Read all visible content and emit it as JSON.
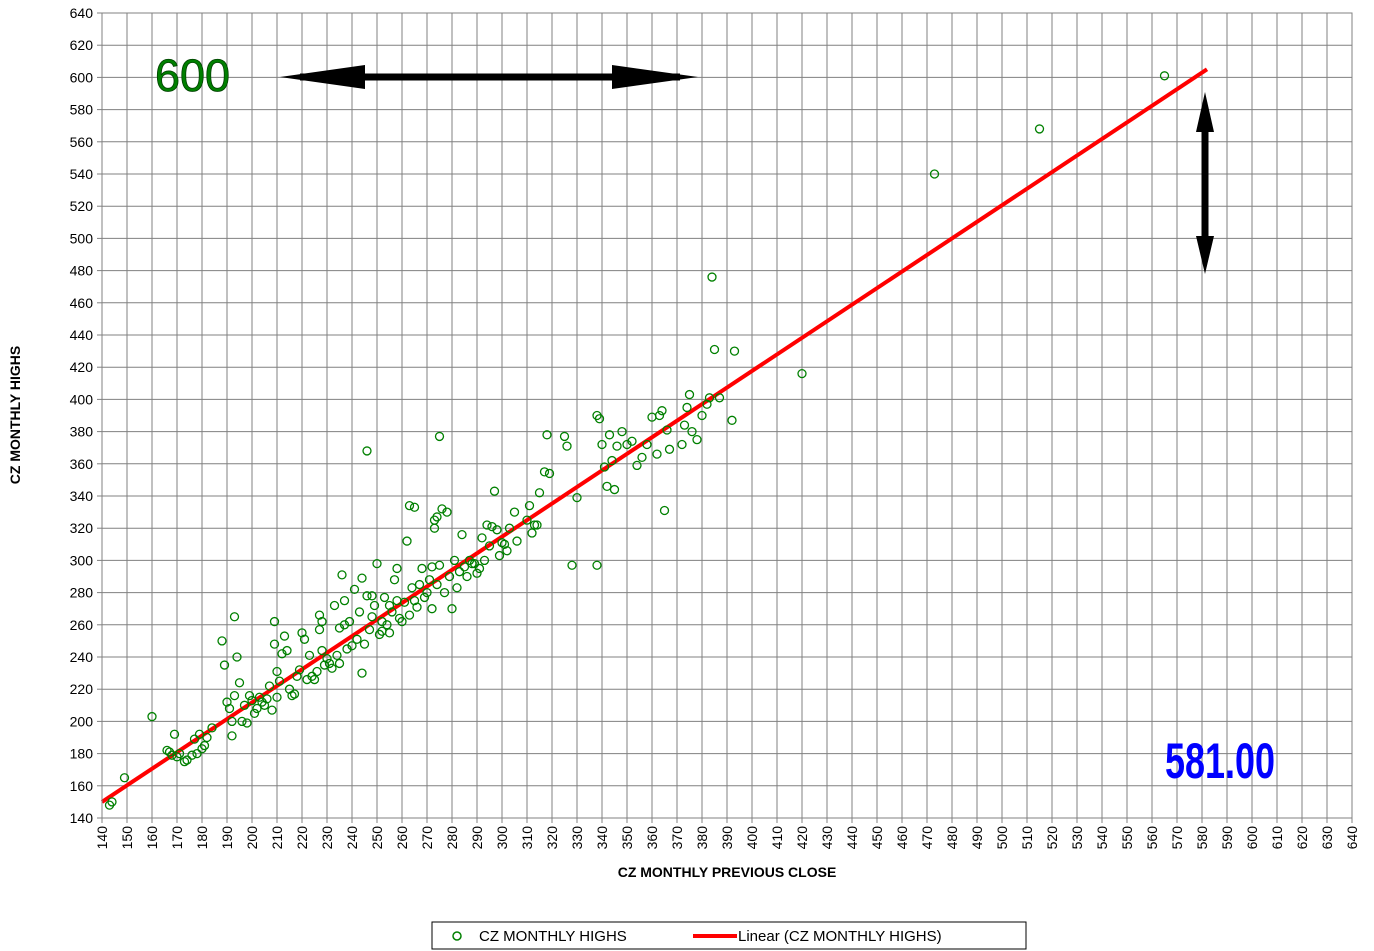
{
  "chart_data": {
    "type": "scatter",
    "xlabel": "CZ MONTHLY PREVIOUS CLOSE",
    "ylabel": "CZ MONTHLY HIGHS",
    "xlim": [
      140,
      640
    ],
    "ylim": [
      140,
      640
    ],
    "xtick_step": 10,
    "ytick_step": 20,
    "grid": true,
    "legend_position": "bottom-center",
    "colors": {
      "points": "#008000",
      "trend": "#ff0000",
      "arrows": "#000000",
      "label_600": "#008000",
      "label_581": "#0000ff"
    },
    "series": [
      {
        "name": "CZ MONTHLY HIGHS",
        "marker": "open-circle",
        "points": [
          [
            143,
            148
          ],
          [
            144,
            150
          ],
          [
            149,
            165
          ],
          [
            160,
            203
          ],
          [
            166,
            182
          ],
          [
            167,
            181
          ],
          [
            168,
            179
          ],
          [
            169,
            192
          ],
          [
            170,
            178
          ],
          [
            171,
            180
          ],
          [
            173,
            175
          ],
          [
            174,
            176
          ],
          [
            176,
            179
          ],
          [
            177,
            189
          ],
          [
            178,
            180
          ],
          [
            179,
            192
          ],
          [
            180,
            183
          ],
          [
            181,
            185
          ],
          [
            182,
            190
          ],
          [
            184,
            196
          ],
          [
            188,
            250
          ],
          [
            189,
            235
          ],
          [
            190,
            212
          ],
          [
            191,
            208
          ],
          [
            192,
            191
          ],
          [
            192,
            200
          ],
          [
            193,
            216
          ],
          [
            193,
            265
          ],
          [
            194,
            240
          ],
          [
            195,
            224
          ],
          [
            196,
            200
          ],
          [
            197,
            210
          ],
          [
            198,
            199
          ],
          [
            199,
            216
          ],
          [
            200,
            213
          ],
          [
            201,
            205
          ],
          [
            202,
            208
          ],
          [
            203,
            215
          ],
          [
            204,
            212
          ],
          [
            205,
            210
          ],
          [
            206,
            214
          ],
          [
            207,
            222
          ],
          [
            208,
            207
          ],
          [
            209,
            248
          ],
          [
            209,
            262
          ],
          [
            210,
            231
          ],
          [
            210,
            215
          ],
          [
            211,
            225
          ],
          [
            212,
            242
          ],
          [
            213,
            253
          ],
          [
            214,
            244
          ],
          [
            215,
            220
          ],
          [
            216,
            216
          ],
          [
            217,
            217
          ],
          [
            218,
            228
          ],
          [
            219,
            232
          ],
          [
            220,
            255
          ],
          [
            221,
            251
          ],
          [
            222,
            226
          ],
          [
            223,
            241
          ],
          [
            224,
            228
          ],
          [
            225,
            226
          ],
          [
            226,
            231
          ],
          [
            227,
            266
          ],
          [
            227,
            257
          ],
          [
            228,
            262
          ],
          [
            228,
            244
          ],
          [
            229,
            235
          ],
          [
            230,
            239
          ],
          [
            231,
            236
          ],
          [
            232,
            233
          ],
          [
            233,
            272
          ],
          [
            234,
            241
          ],
          [
            235,
            236
          ],
          [
            235,
            258
          ],
          [
            236,
            291
          ],
          [
            237,
            260
          ],
          [
            237,
            275
          ],
          [
            238,
            245
          ],
          [
            239,
            262
          ],
          [
            240,
            247
          ],
          [
            241,
            282
          ],
          [
            242,
            251
          ],
          [
            243,
            268
          ],
          [
            244,
            289
          ],
          [
            244,
            230
          ],
          [
            245,
            248
          ],
          [
            246,
            278
          ],
          [
            246,
            368
          ],
          [
            247,
            257
          ],
          [
            248,
            265
          ],
          [
            248,
            278
          ],
          [
            249,
            272
          ],
          [
            250,
            298
          ],
          [
            251,
            254
          ],
          [
            252,
            256
          ],
          [
            252,
            262
          ],
          [
            253,
            277
          ],
          [
            254,
            260
          ],
          [
            255,
            255
          ],
          [
            255,
            272
          ],
          [
            256,
            268
          ],
          [
            257,
            288
          ],
          [
            258,
            295
          ],
          [
            258,
            275
          ],
          [
            259,
            264
          ],
          [
            260,
            262
          ],
          [
            261,
            274
          ],
          [
            262,
            312
          ],
          [
            263,
            334
          ],
          [
            263,
            266
          ],
          [
            264,
            283
          ],
          [
            265,
            333
          ],
          [
            265,
            275
          ],
          [
            266,
            271
          ],
          [
            267,
            285
          ],
          [
            268,
            295
          ],
          [
            269,
            277
          ],
          [
            270,
            280
          ],
          [
            271,
            288
          ],
          [
            272,
            296
          ],
          [
            272,
            270
          ],
          [
            273,
            325
          ],
          [
            273,
            320
          ],
          [
            274,
            285
          ],
          [
            274,
            327
          ],
          [
            275,
            377
          ],
          [
            275,
            297
          ],
          [
            276,
            332
          ],
          [
            277,
            280
          ],
          [
            278,
            330
          ],
          [
            279,
            290
          ],
          [
            280,
            270
          ],
          [
            281,
            300
          ],
          [
            282,
            283
          ],
          [
            283,
            293
          ],
          [
            284,
            316
          ],
          [
            285,
            296
          ],
          [
            286,
            290
          ],
          [
            287,
            300
          ],
          [
            288,
            298
          ],
          [
            289,
            298
          ],
          [
            290,
            292
          ],
          [
            291,
            295
          ],
          [
            292,
            314
          ],
          [
            293,
            300
          ],
          [
            294,
            322
          ],
          [
            295,
            309
          ],
          [
            296,
            321
          ],
          [
            297,
            343
          ],
          [
            298,
            319
          ],
          [
            299,
            303
          ],
          [
            300,
            311
          ],
          [
            301,
            310
          ],
          [
            302,
            306
          ],
          [
            303,
            320
          ],
          [
            305,
            330
          ],
          [
            306,
            312
          ],
          [
            310,
            325
          ],
          [
            311,
            334
          ],
          [
            312,
            317
          ],
          [
            313,
            322
          ],
          [
            314,
            322
          ],
          [
            315,
            342
          ],
          [
            317,
            355
          ],
          [
            318,
            378
          ],
          [
            319,
            354
          ],
          [
            325,
            377
          ],
          [
            326,
            371
          ],
          [
            328,
            297
          ],
          [
            330,
            339
          ],
          [
            338,
            297
          ],
          [
            338,
            390
          ],
          [
            339,
            388
          ],
          [
            340,
            372
          ],
          [
            341,
            358
          ],
          [
            342,
            346
          ],
          [
            343,
            378
          ],
          [
            344,
            362
          ],
          [
            345,
            344
          ],
          [
            346,
            371
          ],
          [
            348,
            380
          ],
          [
            350,
            372
          ],
          [
            352,
            374
          ],
          [
            354,
            359
          ],
          [
            356,
            364
          ],
          [
            358,
            372
          ],
          [
            360,
            389
          ],
          [
            362,
            366
          ],
          [
            363,
            390
          ],
          [
            364,
            393
          ],
          [
            365,
            331
          ],
          [
            366,
            381
          ],
          [
            367,
            369
          ],
          [
            372,
            372
          ],
          [
            373,
            384
          ],
          [
            374,
            395
          ],
          [
            375,
            403
          ],
          [
            376,
            380
          ],
          [
            378,
            375
          ],
          [
            380,
            390
          ],
          [
            382,
            397
          ],
          [
            383,
            401
          ],
          [
            384,
            476
          ],
          [
            385,
            431
          ],
          [
            387,
            401
          ],
          [
            392,
            387
          ],
          [
            393,
            430
          ],
          [
            420,
            416
          ],
          [
            473,
            540
          ],
          [
            515,
            568
          ],
          [
            565,
            601
          ]
        ]
      },
      {
        "name": "Linear (CZ MONTHLY HIGHS)",
        "type": "line",
        "points": [
          [
            140,
            150
          ],
          [
            582,
            605
          ]
        ]
      }
    ],
    "annotations": [
      {
        "text": "600",
        "position": "top-left"
      },
      {
        "text": "581.00",
        "position": "bottom-right"
      }
    ]
  }
}
